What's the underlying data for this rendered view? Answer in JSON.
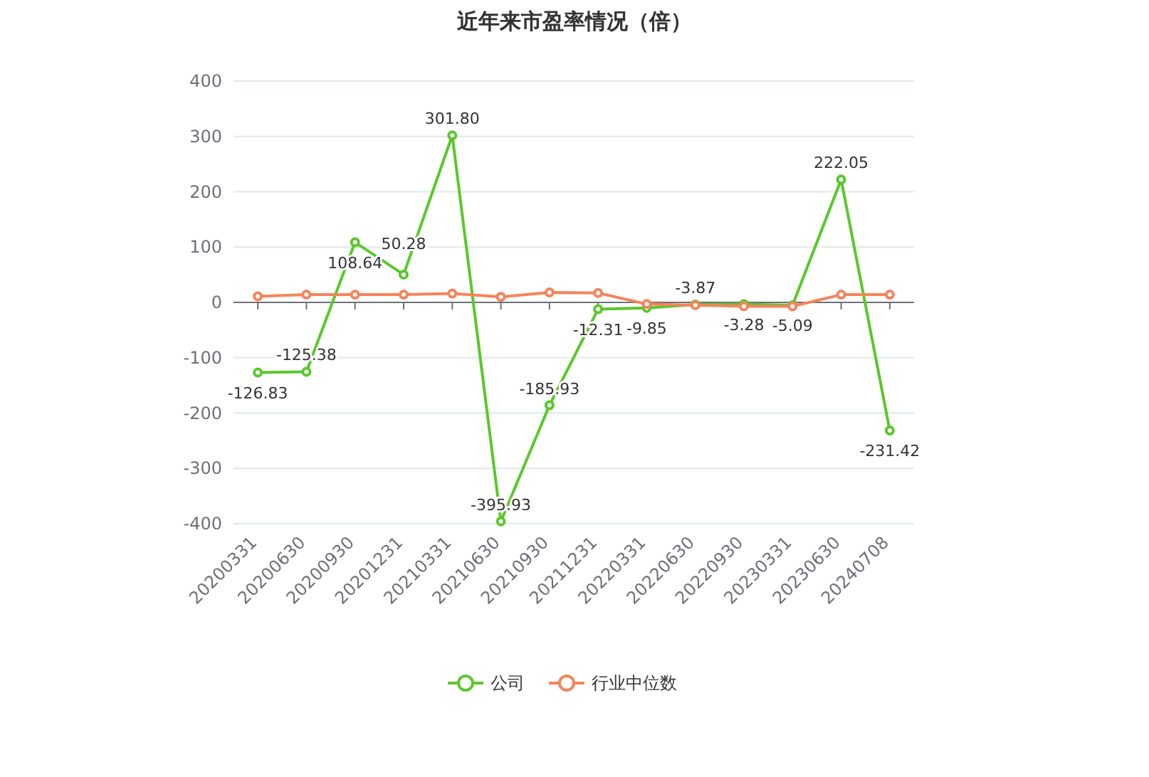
{
  "chart_data": {
    "type": "line",
    "title": "近年来市盈率情况（倍）",
    "categories": [
      "20200331",
      "20200630",
      "20200930",
      "20201231",
      "20210331",
      "20210630",
      "20210930",
      "20211231",
      "20220331",
      "20220630",
      "20220930",
      "20230331",
      "20230630",
      "20240708"
    ],
    "series": [
      {
        "name": "公司",
        "color": "#5ac82a",
        "values": [
          -126.83,
          -125.38,
          108.64,
          50.28,
          301.8,
          -395.93,
          -185.93,
          -12.31,
          -9.85,
          -3.87,
          -3.28,
          -5.09,
          222.05,
          -231.42
        ],
        "value_labels": [
          "-126.83",
          "-125.38",
          "108.64",
          "50.28",
          "301.80",
          "-395.93",
          "-185.93",
          "-12.31",
          "-9.85",
          "-3.87",
          "-3.28",
          "-5.09",
          "222.05",
          "-231.42"
        ]
      },
      {
        "name": "行业中位数",
        "color": "#f5845a",
        "values": [
          11,
          14,
          14,
          14,
          16,
          10,
          18,
          17,
          -3,
          -5,
          -7,
          -7,
          14,
          14
        ]
      }
    ],
    "ylim": [
      -400,
      400
    ],
    "yticks": [
      -400,
      -300,
      -200,
      -100,
      0,
      100,
      200,
      300,
      400
    ],
    "grid": "y",
    "legend": "bottom",
    "marker": "circle",
    "line_style": "solid"
  }
}
